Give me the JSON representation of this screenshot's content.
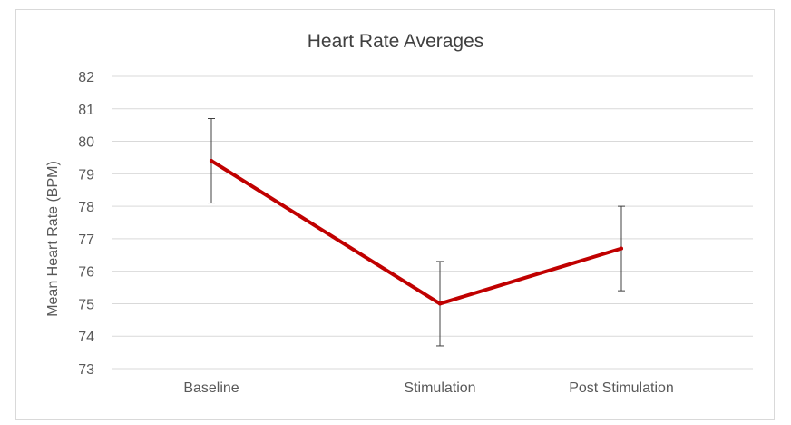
{
  "chart_data": {
    "type": "line",
    "title": "Heart Rate Averages",
    "xlabel": "",
    "ylabel": "Mean Heart Rate (BPM)",
    "categories": [
      "Baseline",
      "Stimulation",
      "Post Stimulation"
    ],
    "series": [
      {
        "values": [
          79.4,
          75.0,
          76.7
        ],
        "error": [
          1.3,
          1.3,
          1.3
        ],
        "color": "#c00000"
      }
    ],
    "ylim": [
      73,
      82
    ],
    "yticks": [
      "73",
      "74",
      "75",
      "76",
      "77",
      "78",
      "79",
      "80",
      "81",
      "82"
    ],
    "grid": true,
    "legend": "none",
    "colors": {
      "line": "#c00000",
      "grid": "#d9d9d9",
      "error_bar": "#404040",
      "text": "#595959"
    }
  }
}
